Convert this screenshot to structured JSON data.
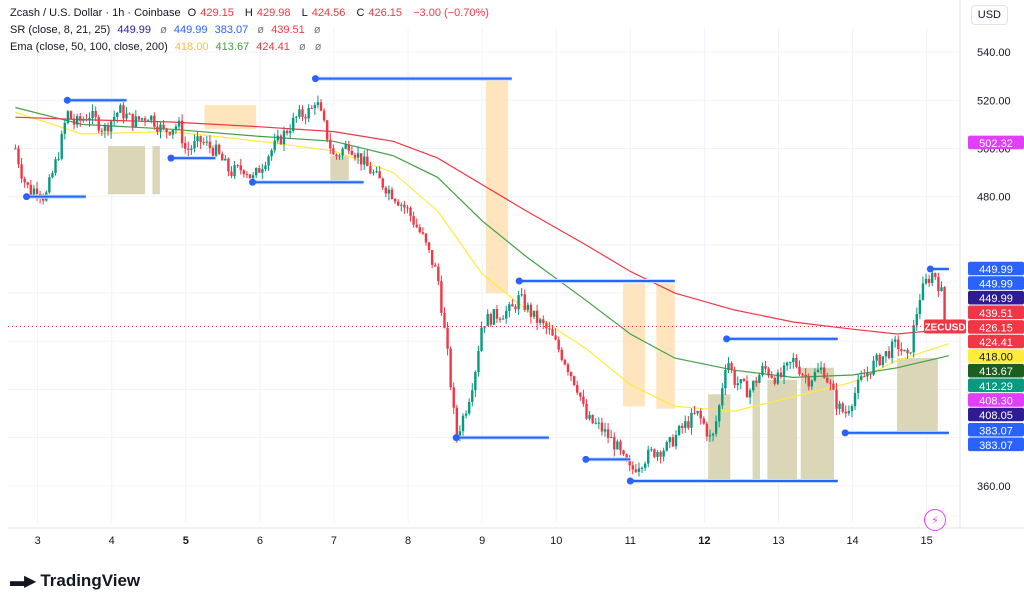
{
  "header": {
    "symbol": "Zcash / U.S. Dollar · 1h · Coinbase",
    "o_label": "O",
    "o_val": "429.15",
    "h_label": "H",
    "h_val": "429.98",
    "l_label": "L",
    "l_val": "424.56",
    "c_label": "C",
    "c_val": "426.15",
    "change": "−3.00 (−0.70%)",
    "sr_name": "SR (close, 8, 21, 25)",
    "sr_vals": [
      "449.99",
      "449.99",
      "383.07",
      "439.51"
    ],
    "ema_name": "Ema (close, 50, 100, close, 200)",
    "ema_vals": [
      "418.00",
      "413.67",
      "424.41"
    ],
    "eye_icon": "ø"
  },
  "currency_button": "USD",
  "brand": "TradingView",
  "colors": {
    "up": "#089981",
    "down": "#f23645",
    "ema50": "#ffeb3b",
    "ema100": "#43a047",
    "ema200": "#f23645",
    "sr_line": "#2962ff",
    "zone_orange": "#ffe0b2",
    "zone_olive": "#d7d2b0"
  },
  "chart_data": {
    "type": "candlestick",
    "x_ticks": [
      "3",
      "4",
      "5",
      "6",
      "7",
      "8",
      "9",
      "10",
      "11",
      "12",
      "13",
      "14",
      "15"
    ],
    "x_ticks_bold": [
      "5",
      "12"
    ],
    "y_ticks": [
      360,
      380,
      400,
      420,
      440,
      460,
      480,
      500,
      520,
      540
    ],
    "y_tick_labels": [
      "360.00",
      "",
      "",
      "",
      "",
      "",
      "480.00",
      "500.00",
      "520.00",
      "540.00"
    ],
    "ylim": [
      345,
      550
    ],
    "last_price": 426.15,
    "close_path": [
      [
        2.7,
        500
      ],
      [
        2.8,
        488
      ],
      [
        2.9,
        482
      ],
      [
        3.0,
        484
      ],
      [
        3.1,
        479
      ],
      [
        3.3,
        500
      ],
      [
        3.4,
        515
      ],
      [
        3.5,
        510
      ],
      [
        3.7,
        514
      ],
      [
        3.9,
        508
      ],
      [
        4.1,
        516
      ],
      [
        4.3,
        511
      ],
      [
        4.5,
        514
      ],
      [
        4.7,
        507
      ],
      [
        4.9,
        510
      ],
      [
        5.0,
        499
      ],
      [
        5.2,
        503
      ],
      [
        5.4,
        499
      ],
      [
        5.6,
        490
      ],
      [
        5.8,
        492
      ],
      [
        5.9,
        487
      ],
      [
        6.1,
        497
      ],
      [
        6.3,
        505
      ],
      [
        6.5,
        513
      ],
      [
        6.7,
        516
      ],
      [
        6.75,
        521
      ],
      [
        6.85,
        511
      ],
      [
        7.0,
        496
      ],
      [
        7.2,
        502
      ],
      [
        7.4,
        494
      ],
      [
        7.6,
        487
      ],
      [
        7.8,
        481
      ],
      [
        8.0,
        474
      ],
      [
        8.2,
        463
      ],
      [
        8.4,
        447
      ],
      [
        8.55,
        410
      ],
      [
        8.65,
        380
      ],
      [
        8.8,
        394
      ],
      [
        8.9,
        407
      ],
      [
        9.0,
        428
      ],
      [
        9.2,
        431
      ],
      [
        9.4,
        433
      ],
      [
        9.5,
        438
      ],
      [
        9.7,
        430
      ],
      [
        9.9,
        424
      ],
      [
        10.1,
        413
      ],
      [
        10.3,
        400
      ],
      [
        10.4,
        388
      ],
      [
        10.6,
        384
      ],
      [
        10.8,
        377
      ],
      [
        10.9,
        371
      ],
      [
        11.0,
        366
      ],
      [
        11.1,
        369
      ],
      [
        11.3,
        374
      ],
      [
        11.5,
        376
      ],
      [
        11.7,
        384
      ],
      [
        11.9,
        390
      ],
      [
        12.0,
        385
      ],
      [
        12.1,
        378
      ],
      [
        12.2,
        393
      ],
      [
        12.3,
        414
      ],
      [
        12.4,
        404
      ],
      [
        12.6,
        399
      ],
      [
        12.8,
        409
      ],
      [
        13.0,
        404
      ],
      [
        13.2,
        412
      ],
      [
        13.4,
        404
      ],
      [
        13.6,
        409
      ],
      [
        13.8,
        393
      ],
      [
        13.9,
        390
      ],
      [
        14.1,
        403
      ],
      [
        14.3,
        411
      ],
      [
        14.5,
        416
      ],
      [
        14.6,
        419
      ],
      [
        14.75,
        412
      ],
      [
        14.9,
        438
      ],
      [
        15.0,
        445
      ],
      [
        15.1,
        449
      ],
      [
        15.2,
        440
      ],
      [
        15.25,
        426.15
      ]
    ],
    "ema_series": [
      {
        "name": "Ema 50",
        "color": "#ffeb3b",
        "points": [
          [
            2.7,
            515
          ],
          [
            3.6,
            506
          ],
          [
            4.8,
            507
          ],
          [
            6.0,
            503
          ],
          [
            7.0,
            499
          ],
          [
            7.8,
            490
          ],
          [
            8.4,
            474
          ],
          [
            9.0,
            448
          ],
          [
            9.6,
            433
          ],
          [
            10.4,
            417
          ],
          [
            11.0,
            402
          ],
          [
            11.6,
            393
          ],
          [
            12.4,
            391
          ],
          [
            13.2,
            397
          ],
          [
            14.0,
            403
          ],
          [
            14.6,
            412
          ],
          [
            15.3,
            419
          ]
        ]
      },
      {
        "name": "Ema 100",
        "color": "#43a047",
        "points": [
          [
            2.7,
            517
          ],
          [
            3.6,
            510
          ],
          [
            4.8,
            508
          ],
          [
            6.0,
            505
          ],
          [
            7.0,
            503
          ],
          [
            7.8,
            497
          ],
          [
            8.4,
            488
          ],
          [
            9.0,
            470
          ],
          [
            9.6,
            455
          ],
          [
            10.4,
            437
          ],
          [
            11.0,
            423
          ],
          [
            11.6,
            413
          ],
          [
            12.4,
            408
          ],
          [
            13.2,
            405
          ],
          [
            14.0,
            406
          ],
          [
            14.6,
            409
          ],
          [
            15.3,
            414
          ]
        ]
      },
      {
        "name": "Ema 200",
        "color": "#f23645",
        "points": [
          [
            2.7,
            513
          ],
          [
            3.6,
            512
          ],
          [
            4.8,
            511
          ],
          [
            6.0,
            509
          ],
          [
            7.0,
            507
          ],
          [
            7.8,
            503
          ],
          [
            8.4,
            496
          ],
          [
            9.0,
            485
          ],
          [
            9.6,
            474
          ],
          [
            10.4,
            460
          ],
          [
            11.0,
            449
          ],
          [
            11.6,
            440
          ],
          [
            12.4,
            433
          ],
          [
            13.2,
            428
          ],
          [
            14.0,
            425
          ],
          [
            14.6,
            423
          ],
          [
            15.3,
            425
          ]
        ]
      }
    ],
    "sr_levels": [
      {
        "x0": 2.85,
        "x1": 3.65,
        "y": 480
      },
      {
        "x0": 3.4,
        "x1": 4.2,
        "y": 520
      },
      {
        "x0": 4.8,
        "x1": 5.4,
        "y": 496
      },
      {
        "x0": 5.9,
        "x1": 7.4,
        "y": 486
      },
      {
        "x0": 6.75,
        "x1": 9.4,
        "y": 529
      },
      {
        "x0": 8.65,
        "x1": 9.9,
        "y": 380
      },
      {
        "x0": 9.5,
        "x1": 11.6,
        "y": 445
      },
      {
        "x0": 10.4,
        "x1": 11.0,
        "y": 371
      },
      {
        "x0": 11.0,
        "x1": 13.8,
        "y": 362
      },
      {
        "x0": 12.3,
        "x1": 13.8,
        "y": 421
      },
      {
        "x0": 13.9,
        "x1": 15.3,
        "y": 382
      },
      {
        "x0": 15.05,
        "x1": 15.3,
        "y": 450
      }
    ],
    "zones_orange": [
      {
        "x0": 5.25,
        "x1": 5.95,
        "y0": 518,
        "y1": 508
      },
      {
        "x0": 9.05,
        "x1": 9.35,
        "y0": 529,
        "y1": 440
      },
      {
        "x0": 10.9,
        "x1": 11.2,
        "y0": 444,
        "y1": 393
      },
      {
        "x0": 11.35,
        "x1": 11.6,
        "y0": 444,
        "y1": 392
      }
    ],
    "zones_olive": [
      {
        "x0": 3.95,
        "x1": 4.45,
        "y0": 501,
        "y1": 481
      },
      {
        "x0": 4.55,
        "x1": 4.65,
        "y0": 501,
        "y1": 481
      },
      {
        "x0": 6.95,
        "x1": 7.2,
        "y0": 497,
        "y1": 486
      },
      {
        "x0": 12.05,
        "x1": 12.35,
        "y0": 398,
        "y1": 362
      },
      {
        "x0": 12.65,
        "x1": 12.75,
        "y0": 404,
        "y1": 362
      },
      {
        "x0": 12.85,
        "x1": 13.25,
        "y0": 404,
        "y1": 362
      },
      {
        "x0": 13.3,
        "x1": 13.75,
        "y0": 409,
        "y1": 362
      },
      {
        "x0": 14.6,
        "x1": 15.15,
        "y0": 413,
        "y1": 382
      }
    ],
    "price_labels": [
      {
        "text": "502.32",
        "value": 502.32,
        "bg": "#e040fb",
        "fg": "#ffffff"
      },
      {
        "text": "449.99",
        "value": 449.99,
        "bg": "#2962ff",
        "fg": "#ffffff"
      },
      {
        "text": "449.99",
        "value": 449.99,
        "bg": "#2962ff",
        "fg": "#ffffff"
      },
      {
        "text": "449.99",
        "value": 449.99,
        "bg": "#311b92",
        "fg": "#ffffff"
      },
      {
        "text": "439.51",
        "value": 439.51,
        "bg": "#f23645",
        "fg": "#ffffff"
      },
      {
        "text": "426.15",
        "value": 426.15,
        "bg": "#f23645",
        "fg": "#ffffff"
      },
      {
        "text": "424.41",
        "value": 424.41,
        "bg": "#f23645",
        "fg": "#ffffff"
      },
      {
        "text": "418.00",
        "value": 418.0,
        "bg": "#ffeb3b",
        "fg": "#131722"
      },
      {
        "text": "413.67",
        "value": 413.67,
        "bg": "#1b5e20",
        "fg": "#ffffff"
      },
      {
        "text": "412.29",
        "value": 412.29,
        "bg": "#089981",
        "fg": "#ffffff"
      },
      {
        "text": "408.30",
        "value": 408.3,
        "bg": "#e040fb",
        "fg": "#ffffff"
      },
      {
        "text": "408.05",
        "value": 408.05,
        "bg": "#311b92",
        "fg": "#ffffff"
      },
      {
        "text": "383.07",
        "value": 383.07,
        "bg": "#2962ff",
        "fg": "#ffffff"
      },
      {
        "text": "383.07",
        "value": 383.07,
        "bg": "#2962ff",
        "fg": "#ffffff"
      }
    ],
    "symbol_tag": "ZECUSD"
  }
}
